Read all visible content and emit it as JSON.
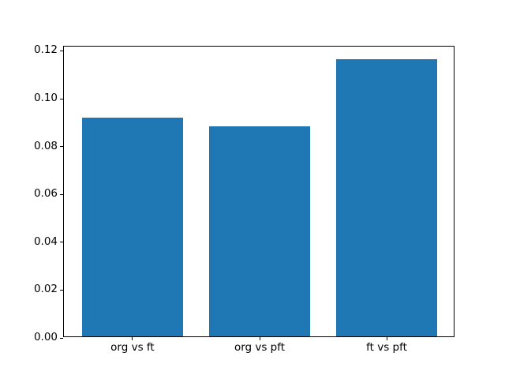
{
  "chart_data": {
    "type": "bar",
    "categories": [
      "org vs ft",
      "org vs pft",
      "ft vs pft"
    ],
    "values": [
      0.0915,
      0.0878,
      0.1158
    ],
    "title": "",
    "xlabel": "",
    "ylabel": "",
    "ylim": [
      0,
      0.1218
    ],
    "yticks": [
      0.0,
      0.02,
      0.04,
      0.06,
      0.08,
      0.1,
      0.12
    ],
    "ytick_label_format": "2dp",
    "bar_color": "#1f77b4",
    "spine_color": "#000000",
    "background_color": "#ffffff",
    "bar_rel_width": 0.8,
    "grid": false,
    "legend": null
  }
}
